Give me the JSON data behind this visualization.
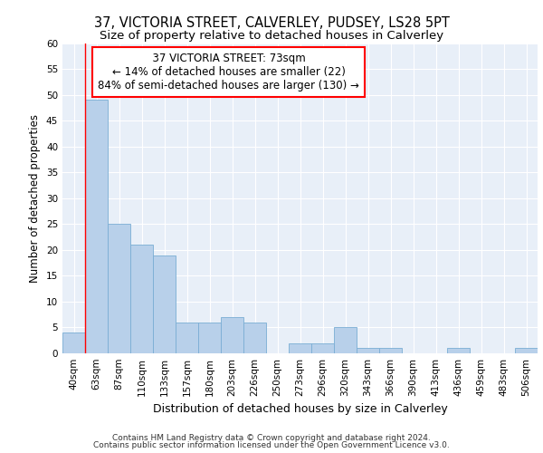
{
  "title1": "37, VICTORIA STREET, CALVERLEY, PUDSEY, LS28 5PT",
  "title2": "Size of property relative to detached houses in Calverley",
  "xlabel": "Distribution of detached houses by size in Calverley",
  "ylabel": "Number of detached properties",
  "categories": [
    "40sqm",
    "63sqm",
    "87sqm",
    "110sqm",
    "133sqm",
    "157sqm",
    "180sqm",
    "203sqm",
    "226sqm",
    "250sqm",
    "273sqm",
    "296sqm",
    "320sqm",
    "343sqm",
    "366sqm",
    "390sqm",
    "413sqm",
    "436sqm",
    "459sqm",
    "483sqm",
    "506sqm"
  ],
  "values": [
    4,
    49,
    25,
    21,
    19,
    6,
    6,
    7,
    6,
    0,
    2,
    2,
    5,
    1,
    1,
    0,
    0,
    1,
    0,
    0,
    1
  ],
  "bar_color": "#b8d0ea",
  "bar_edge_color": "#7aadd4",
  "annotation_box_text": "  37 VICTORIA STREET: 73sqm  \n← 14% of detached houses are smaller (22)\n84% of semi-detached houses are larger (130) →",
  "annotation_box_color": "white",
  "annotation_box_edge_color": "red",
  "annotation_line_color": "red",
  "ylim": [
    0,
    60
  ],
  "yticks": [
    0,
    5,
    10,
    15,
    20,
    25,
    30,
    35,
    40,
    45,
    50,
    55,
    60
  ],
  "background_color": "#e8eff8",
  "grid_color": "white",
  "footer1": "Contains HM Land Registry data © Crown copyright and database right 2024.",
  "footer2": "Contains public sector information licensed under the Open Government Licence v3.0.",
  "title1_fontsize": 10.5,
  "title2_fontsize": 9.5,
  "xlabel_fontsize": 9,
  "ylabel_fontsize": 8.5,
  "tick_fontsize": 7.5,
  "annotation_fontsize": 8.5,
  "footer_fontsize": 6.5
}
